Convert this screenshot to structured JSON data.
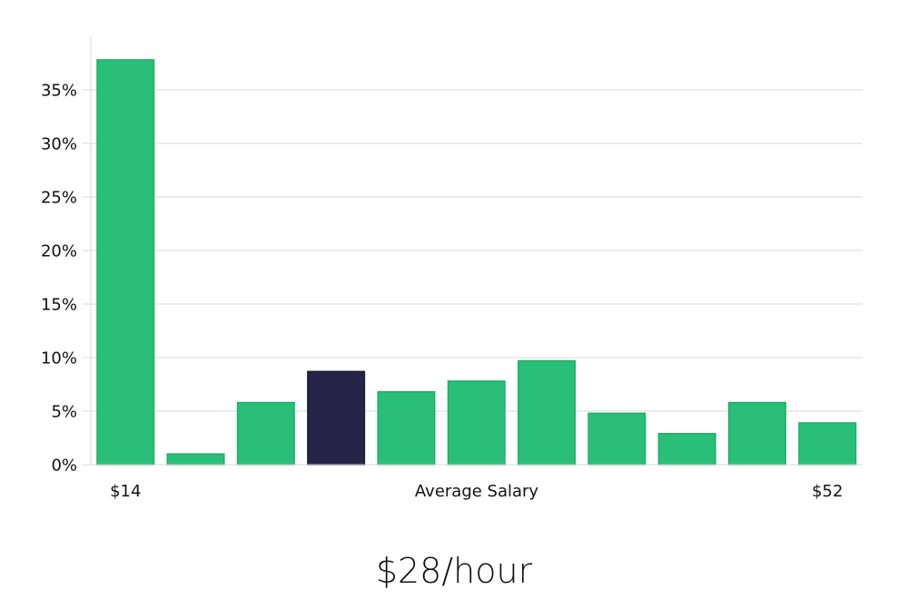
{
  "chart_data": {
    "type": "bar",
    "categories": [
      "$14",
      "",
      "",
      "",
      "",
      "",
      "",
      "",
      "",
      "",
      "$52"
    ],
    "values": [
      37.8,
      1.0,
      5.8,
      8.7,
      6.8,
      7.8,
      9.7,
      4.8,
      2.9,
      5.8,
      3.9
    ],
    "highlight_index": 3,
    "ylim": [
      0,
      40
    ],
    "yticks": [
      0,
      5,
      10,
      15,
      20,
      25,
      30,
      35
    ],
    "ytick_labels": [
      "0%",
      "5%",
      "10%",
      "15%",
      "20%",
      "25%",
      "30%",
      "35%"
    ],
    "xlabel": "Average Salary",
    "x_start_label": "$14",
    "x_end_label": "$52",
    "grid": true,
    "colors": {
      "bar": "#2abf78",
      "highlight": "#282447",
      "grid": "#d9d9d9"
    }
  },
  "summary": {
    "value": "$28/hour"
  }
}
